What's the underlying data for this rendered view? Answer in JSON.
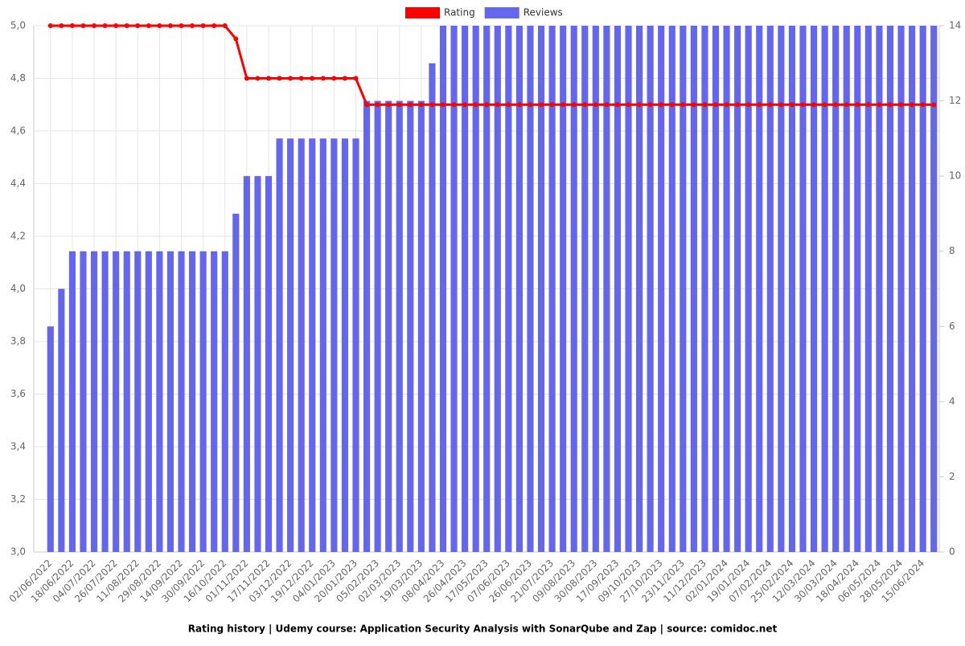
{
  "chart_data": {
    "type": "combo",
    "title": "Rating history | Udemy course: Application Security Analysis with SonarQube and Zap | source: comidoc.net",
    "categories": [
      "02/06/2022",
      null,
      "18/06/2022",
      null,
      "04/07/2022",
      null,
      "26/07/2022",
      null,
      "11/08/2022",
      null,
      "29/08/2022",
      null,
      "14/09/2022",
      null,
      "30/09/2022",
      null,
      "16/10/2022",
      null,
      "01/11/2022",
      null,
      "17/11/2022",
      null,
      "03/12/2022",
      null,
      "19/12/2022",
      null,
      "04/01/2023",
      null,
      "20/01/2023",
      null,
      "05/02/2023",
      null,
      "02/03/2023",
      null,
      "19/03/2023",
      null,
      "08/04/2023",
      null,
      "26/04/2023",
      null,
      "17/05/2023",
      null,
      "07/06/2023",
      null,
      "26/06/2023",
      null,
      "21/07/2023",
      null,
      "09/08/2023",
      null,
      "30/08/2023",
      null,
      "17/09/2023",
      null,
      "09/10/2023",
      null,
      "27/10/2023",
      null,
      "23/11/2023",
      null,
      "11/12/2023",
      null,
      "02/01/2024",
      null,
      "19/01/2024",
      null,
      "07/02/2024",
      null,
      "25/02/2024",
      null,
      "12/03/2024",
      null,
      "30/03/2024",
      null,
      "18/04/2024",
      null,
      "06/05/2024",
      null,
      "28/05/2024",
      null,
      "15/06/2024",
      null
    ],
    "series": [
      {
        "name": "Rating",
        "type": "line",
        "color": "#ff0000",
        "values": [
          5.0,
          5.0,
          5.0,
          5.0,
          5.0,
          5.0,
          5.0,
          5.0,
          5.0,
          5.0,
          5.0,
          5.0,
          5.0,
          5.0,
          5.0,
          5.0,
          5.0,
          4.95,
          4.8,
          4.8,
          4.8,
          4.8,
          4.8,
          4.8,
          4.8,
          4.8,
          4.8,
          4.8,
          4.8,
          4.7,
          4.7,
          4.7,
          4.7,
          4.7,
          4.7,
          4.7,
          4.7,
          4.7,
          4.7,
          4.7,
          4.7,
          4.7,
          4.7,
          4.7,
          4.7,
          4.7,
          4.7,
          4.7,
          4.7,
          4.7,
          4.7,
          4.7,
          4.7,
          4.7,
          4.7,
          4.7,
          4.7,
          4.7,
          4.7,
          4.7,
          4.7,
          4.7,
          4.7,
          4.7,
          4.7,
          4.7,
          4.7,
          4.7,
          4.7,
          4.7,
          4.7,
          4.7,
          4.7,
          4.7,
          4.7,
          4.7,
          4.7,
          4.7,
          4.7,
          4.7,
          4.7,
          4.7
        ]
      },
      {
        "name": "Reviews",
        "type": "bar",
        "axis": "y2",
        "color": "#6466f0",
        "values": [
          6,
          7,
          8,
          8,
          8,
          8,
          8,
          8,
          8,
          8,
          8,
          8,
          8,
          8,
          8,
          8,
          8,
          9,
          10,
          10,
          10,
          11,
          11,
          11,
          11,
          11,
          11,
          11,
          11,
          12,
          12,
          12,
          12,
          12,
          12,
          13,
          14,
          14,
          14,
          14,
          14,
          14,
          14,
          14,
          14,
          14,
          14,
          14,
          14,
          14,
          14,
          14,
          14,
          14,
          14,
          14,
          14,
          14,
          14,
          14,
          14,
          14,
          14,
          14,
          14,
          14,
          14,
          14,
          14,
          14,
          14,
          14,
          14,
          14,
          14,
          14,
          14,
          14,
          14,
          14,
          14,
          14
        ]
      }
    ],
    "ylim": [
      3.0,
      5.0
    ],
    "yticks": [
      {
        "value": 3.0,
        "label": "3,0"
      },
      {
        "value": 3.2,
        "label": "3,2"
      },
      {
        "value": 3.4,
        "label": "3,4"
      },
      {
        "value": 3.6,
        "label": "3,6"
      },
      {
        "value": 3.8,
        "label": "3,8"
      },
      {
        "value": 4.0,
        "label": "4,0"
      },
      {
        "value": 4.2,
        "label": "4,2"
      },
      {
        "value": 4.4,
        "label": "4,4"
      },
      {
        "value": 4.6,
        "label": "4,6"
      },
      {
        "value": 4.8,
        "label": "4,8"
      },
      {
        "value": 5.0,
        "label": "5,0"
      }
    ],
    "y2lim": [
      0,
      14
    ],
    "y2ticks": [
      0,
      2,
      4,
      6,
      8,
      10,
      12,
      14
    ],
    "grid": true,
    "legend": "top"
  }
}
